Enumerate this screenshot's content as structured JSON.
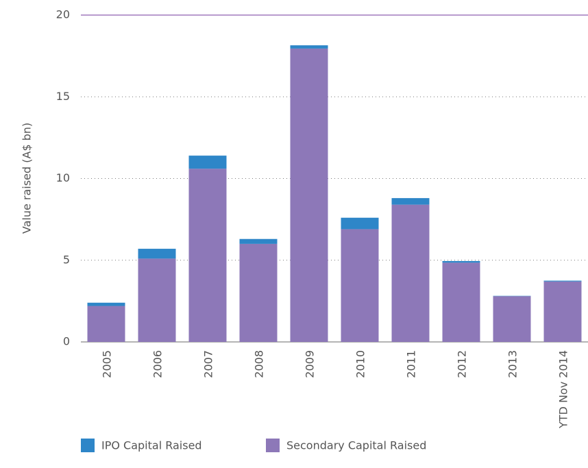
{
  "chart_data": {
    "type": "stacked_bar",
    "y_label": "Value raised (A$ bn)",
    "categories": [
      "2005",
      "2006",
      "2007",
      "2008",
      "2009",
      "2010",
      "2011",
      "2012",
      "2013",
      "YTD Nov 2014"
    ],
    "series": [
      {
        "name": "Secondary Capital Raised",
        "color": "#8d78b8",
        "values": [
          2.2,
          5.1,
          10.6,
          6.0,
          17.95,
          6.9,
          8.4,
          4.85,
          2.8,
          3.7
        ]
      },
      {
        "name": "IPO Capital Raised",
        "color": "#2e86c8",
        "values": [
          0.2,
          0.6,
          0.8,
          0.3,
          0.2,
          0.7,
          0.4,
          0.1,
          0.02,
          0.05
        ]
      }
    ],
    "ylim": [
      0,
      20
    ],
    "yticks": [
      0,
      5,
      10,
      15,
      20
    ],
    "grid": true
  }
}
